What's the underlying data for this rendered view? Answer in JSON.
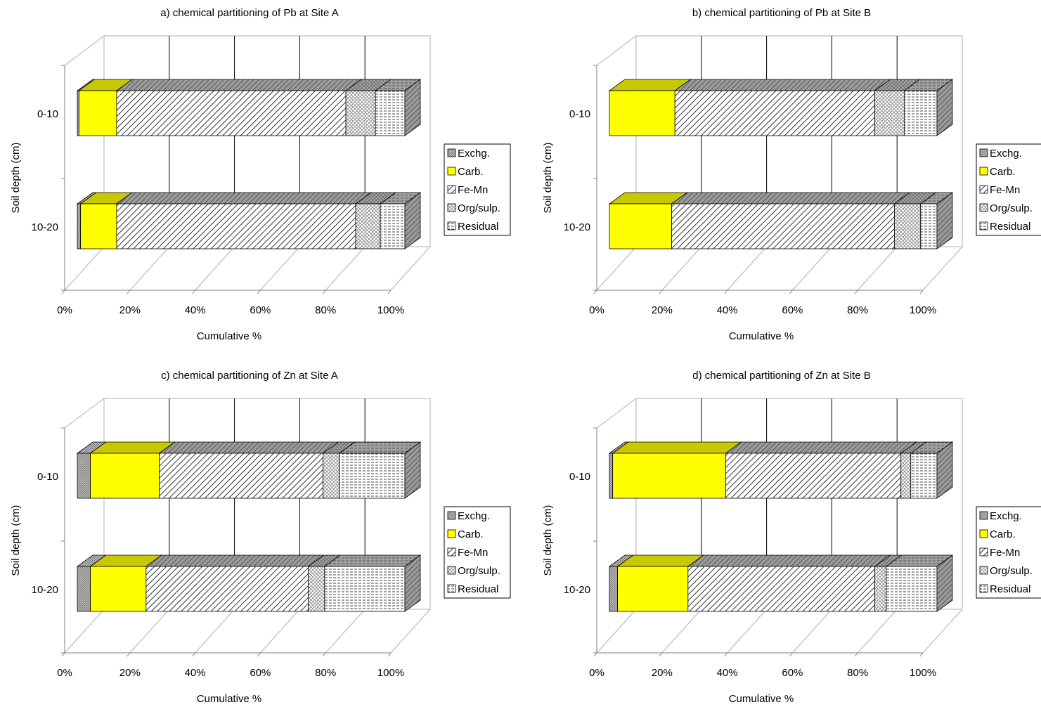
{
  "fraction_names": [
    "Exchg.",
    "Carb.",
    "Fe-Mn",
    "Org/sulp.",
    "Residual"
  ],
  "chart_data": [
    {
      "type": "bar",
      "orientation": "horizontal",
      "stacked": "percent",
      "style": "3d",
      "title": "a) chemical partitioning of Pb at Site A",
      "xlabel": "Cumulative %",
      "ylabel": "Soil depth (cm)",
      "categories": [
        "0-10",
        "10-20"
      ],
      "xlim": [
        0,
        100
      ],
      "x_ticks": [
        "0%",
        "20%",
        "40%",
        "60%",
        "80%",
        "100%"
      ],
      "grid": true,
      "legend": "right",
      "series": [
        {
          "name": "Exchg.",
          "values": [
            0.5,
            1
          ]
        },
        {
          "name": "Carb.",
          "values": [
            11.5,
            11
          ]
        },
        {
          "name": "Fe-Mn",
          "values": [
            70,
            73
          ]
        },
        {
          "name": "Org/sulp.",
          "values": [
            9,
            7.5
          ]
        },
        {
          "name": "Residual",
          "values": [
            9,
            7.5
          ]
        }
      ]
    },
    {
      "type": "bar",
      "orientation": "horizontal",
      "stacked": "percent",
      "style": "3d",
      "title": "b) chemical partitioning of Pb at Site B",
      "xlabel": "Cumulative %",
      "ylabel": "Soil depth (cm)",
      "categories": [
        "0-10",
        "10-20"
      ],
      "xlim": [
        0,
        100
      ],
      "x_ticks": [
        "0%",
        "20%",
        "40%",
        "60%",
        "80%",
        "100%"
      ],
      "grid": true,
      "legend": "right",
      "series": [
        {
          "name": "Exchg.",
          "values": [
            0,
            0
          ]
        },
        {
          "name": "Carb.",
          "values": [
            20,
            19
          ]
        },
        {
          "name": "Fe-Mn",
          "values": [
            61,
            68
          ]
        },
        {
          "name": "Org/sulp.",
          "values": [
            9,
            8
          ]
        },
        {
          "name": "Residual",
          "values": [
            10,
            5
          ]
        }
      ]
    },
    {
      "type": "bar",
      "orientation": "horizontal",
      "stacked": "percent",
      "style": "3d",
      "title": "c) chemical partitioning of Zn at Site A",
      "xlabel": "Cumulative %",
      "ylabel": "Soil depth (cm)",
      "categories": [
        "0-10",
        "10-20"
      ],
      "xlim": [
        0,
        100
      ],
      "x_ticks": [
        "0%",
        "20%",
        "40%",
        "60%",
        "80%",
        "100%"
      ],
      "grid": true,
      "legend": "right",
      "series": [
        {
          "name": "Exchg.",
          "values": [
            4,
            4
          ]
        },
        {
          "name": "Carb.",
          "values": [
            21,
            17
          ]
        },
        {
          "name": "Fe-Mn",
          "values": [
            50,
            49.5
          ]
        },
        {
          "name": "Org/sulp.",
          "values": [
            5,
            5
          ]
        },
        {
          "name": "Residual",
          "values": [
            20,
            24.5
          ]
        }
      ]
    },
    {
      "type": "bar",
      "orientation": "horizontal",
      "stacked": "percent",
      "style": "3d",
      "title": "d) chemical partitioning of Zn at Site B",
      "xlabel": "Cumulative %",
      "ylabel": "Soil depth (cm)",
      "categories": [
        "0-10",
        "10-20"
      ],
      "xlim": [
        0,
        100
      ],
      "x_ticks": [
        "0%",
        "20%",
        "40%",
        "60%",
        "80%",
        "100%"
      ],
      "grid": true,
      "legend": "right",
      "series": [
        {
          "name": "Exchg.",
          "values": [
            1,
            2.5
          ]
        },
        {
          "name": "Carb.",
          "values": [
            34.5,
            21.5
          ]
        },
        {
          "name": "Fe-Mn",
          "values": [
            53.5,
            57
          ]
        },
        {
          "name": "Org/sulp.",
          "values": [
            3,
            3.5
          ]
        },
        {
          "name": "Residual",
          "values": [
            8,
            15.5
          ]
        }
      ]
    }
  ],
  "colors": {
    "carb_fill": "#ffff00",
    "carb_top": "#c8c800",
    "gray_side": "#777777",
    "axis": "#808080",
    "text": "#000000"
  }
}
